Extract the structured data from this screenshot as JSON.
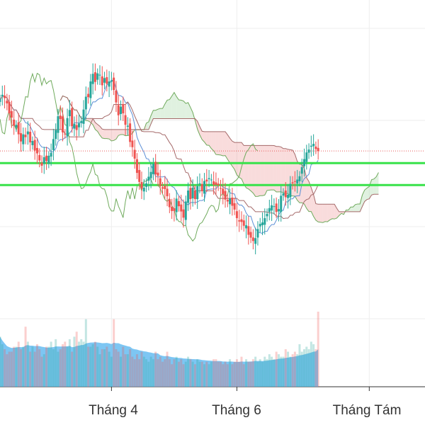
{
  "chart_data": {
    "type": "candlestick",
    "title": "",
    "xlabel": "",
    "ylabel": "",
    "ylim": [
      88,
      146
    ],
    "grid": true,
    "x_ticks": [
      {
        "label": "Tháng 4",
        "x": 48
      },
      {
        "label": "Tháng 6",
        "x": 102
      },
      {
        "label": "Tháng Tám",
        "x": 159
      }
    ],
    "x_range": [
      0,
      183
    ],
    "last_index": 147,
    "horizontal_levels": [
      {
        "name": "support-1",
        "value": 111.75,
        "color": "#38e24a"
      },
      {
        "name": "support-2",
        "value": 107.15,
        "color": "#38e24a"
      }
    ],
    "last_price_line": {
      "value": 114.3,
      "color": "#e85a5a"
    },
    "colors": {
      "up": "#26a69a",
      "down": "#ef5350",
      "cloud_bull": "#a5d6a7",
      "cloud_bear": "#ef9a9a",
      "tenkan": "#5c8fd6",
      "kijun": "#a56a6a",
      "chikou": "#6faa5c",
      "volume_area": "#5db8f0"
    },
    "close": [
      125.2,
      126.1,
      125.4,
      124.3,
      122.2,
      121.3,
      119.6,
      119.8,
      117.8,
      116.3,
      117.8,
      117.2,
      118.4,
      116.1,
      116.4,
      114.4,
      113.8,
      112.3,
      111.2,
      113.0,
      112.2,
      113.3,
      113.9,
      116.8,
      118.7,
      121.6,
      121.0,
      118.2,
      117.9,
      121.2,
      122.9,
      119.5,
      120.0,
      118.7,
      120.1,
      120.6,
      123.0,
      125.7,
      125.6,
      128.9,
      130.5,
      128.8,
      130.6,
      130.3,
      128.1,
      129.6,
      128.4,
      128.9,
      129.1,
      127.1,
      124.5,
      121.8,
      123.6,
      122.2,
      119.8,
      119.6,
      116.2,
      115.1,
      112.7,
      109.7,
      107.8,
      106.4,
      106.6,
      107.5,
      108.9,
      109.9,
      111.6,
      109.4,
      109.1,
      106.9,
      106.4,
      106.3,
      104.8,
      102.5,
      101.7,
      101.7,
      104.3,
      102.7,
      101.6,
      100.3,
      103.7,
      106.0,
      104.2,
      106.6,
      104.2,
      106.9,
      107.5,
      105.9,
      108.0,
      107.9,
      108.6,
      108.3,
      107.2,
      107.2,
      107.1,
      106.5,
      105.3,
      104.1,
      103.7,
      104.3,
      102.8,
      102.0,
      100.2,
      99.5,
      99.4,
      98.6,
      98.7,
      96.7,
      96.1,
      95.4,
      96.0,
      97.9,
      99.0,
      99.3,
      100.2,
      101.1,
      102.3,
      102.9,
      102.7,
      101.5,
      102.1,
      104.9,
      105.4,
      104.6,
      105.1,
      107.4,
      107.5,
      107.9,
      108.3,
      109.0,
      110.9,
      112.6,
      114.0,
      114.6,
      115.4,
      115.8,
      114.7,
      114.3
    ],
    "volume_max": 30,
    "volume": [
      20,
      17,
      15,
      13,
      14,
      14,
      16,
      16,
      18,
      15,
      16,
      24,
      18,
      14,
      16,
      14,
      17,
      15,
      12,
      13,
      16,
      16,
      18,
      15,
      19,
      14,
      15,
      17,
      18,
      16,
      19,
      14,
      20,
      22,
      18,
      19,
      18,
      27,
      16,
      16,
      17,
      18,
      16,
      13,
      15,
      15,
      16,
      14,
      12,
      27,
      15,
      14,
      12,
      16,
      13,
      13,
      15,
      12,
      11,
      13,
      11,
      14,
      12,
      11,
      10,
      12,
      11,
      14,
      11,
      12,
      10,
      11,
      14,
      11,
      9,
      11,
      12,
      10,
      11,
      9,
      10,
      12,
      11,
      10,
      9,
      11,
      10,
      10,
      9,
      10,
      9,
      10,
      11,
      11,
      10,
      10,
      9,
      10,
      9,
      11,
      9,
      10,
      11,
      10,
      12,
      9,
      11,
      10,
      10,
      11,
      12,
      10,
      11,
      10,
      12,
      11,
      13,
      12,
      11,
      14,
      13,
      12,
      12,
      15,
      14,
      12,
      13,
      14,
      13,
      17,
      14,
      15,
      16,
      15,
      18,
      17,
      15,
      30
    ]
  }
}
